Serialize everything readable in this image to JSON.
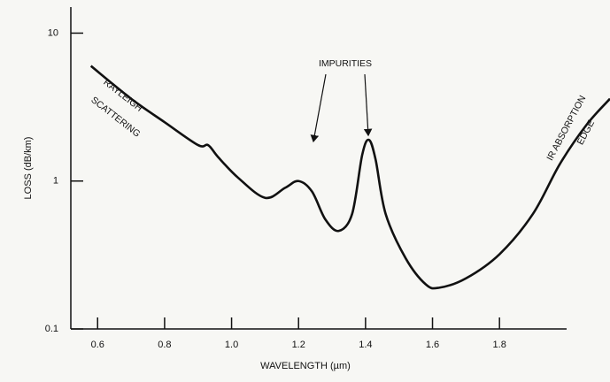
{
  "chart_data": {
    "type": "line",
    "xlabel": "WAVELENGTH (µm)",
    "ylabel": "LOSS (dB/km)",
    "annotations": [
      "RAYLEIGH",
      "SCATTERING",
      "IMPURITIES",
      "IR ABSORPTION",
      "EDGE"
    ],
    "x": [
      0.58,
      0.7,
      0.8,
      0.9,
      0.93,
      0.96,
      1.02,
      1.1,
      1.16,
      1.2,
      1.24,
      1.28,
      1.32,
      1.36,
      1.39,
      1.41,
      1.43,
      1.46,
      1.52,
      1.58,
      1.62,
      1.7,
      1.8,
      1.9,
      1.98,
      2.06,
      2.13
    ],
    "series": [
      {
        "color": "#111111",
        "values": [
          6.0,
          3.6,
          2.5,
          1.75,
          1.75,
          1.45,
          1.05,
          0.77,
          0.9,
          1.0,
          0.85,
          0.55,
          0.46,
          0.6,
          1.5,
          1.9,
          1.4,
          0.6,
          0.3,
          0.2,
          0.19,
          0.22,
          0.32,
          0.6,
          1.3,
          2.4,
          3.6
        ]
      }
    ],
    "xlim": [
      0.52,
      2.13
    ],
    "ylim": [
      0.1,
      15
    ],
    "xticks": [
      0.6,
      0.8,
      {
        "value": 1,
        "label": "1.0"
      },
      1.2,
      1.4,
      1.6,
      1.8
    ],
    "yticks": [
      0.1,
      1,
      10
    ],
    "log_y": true,
    "grid": false
  }
}
